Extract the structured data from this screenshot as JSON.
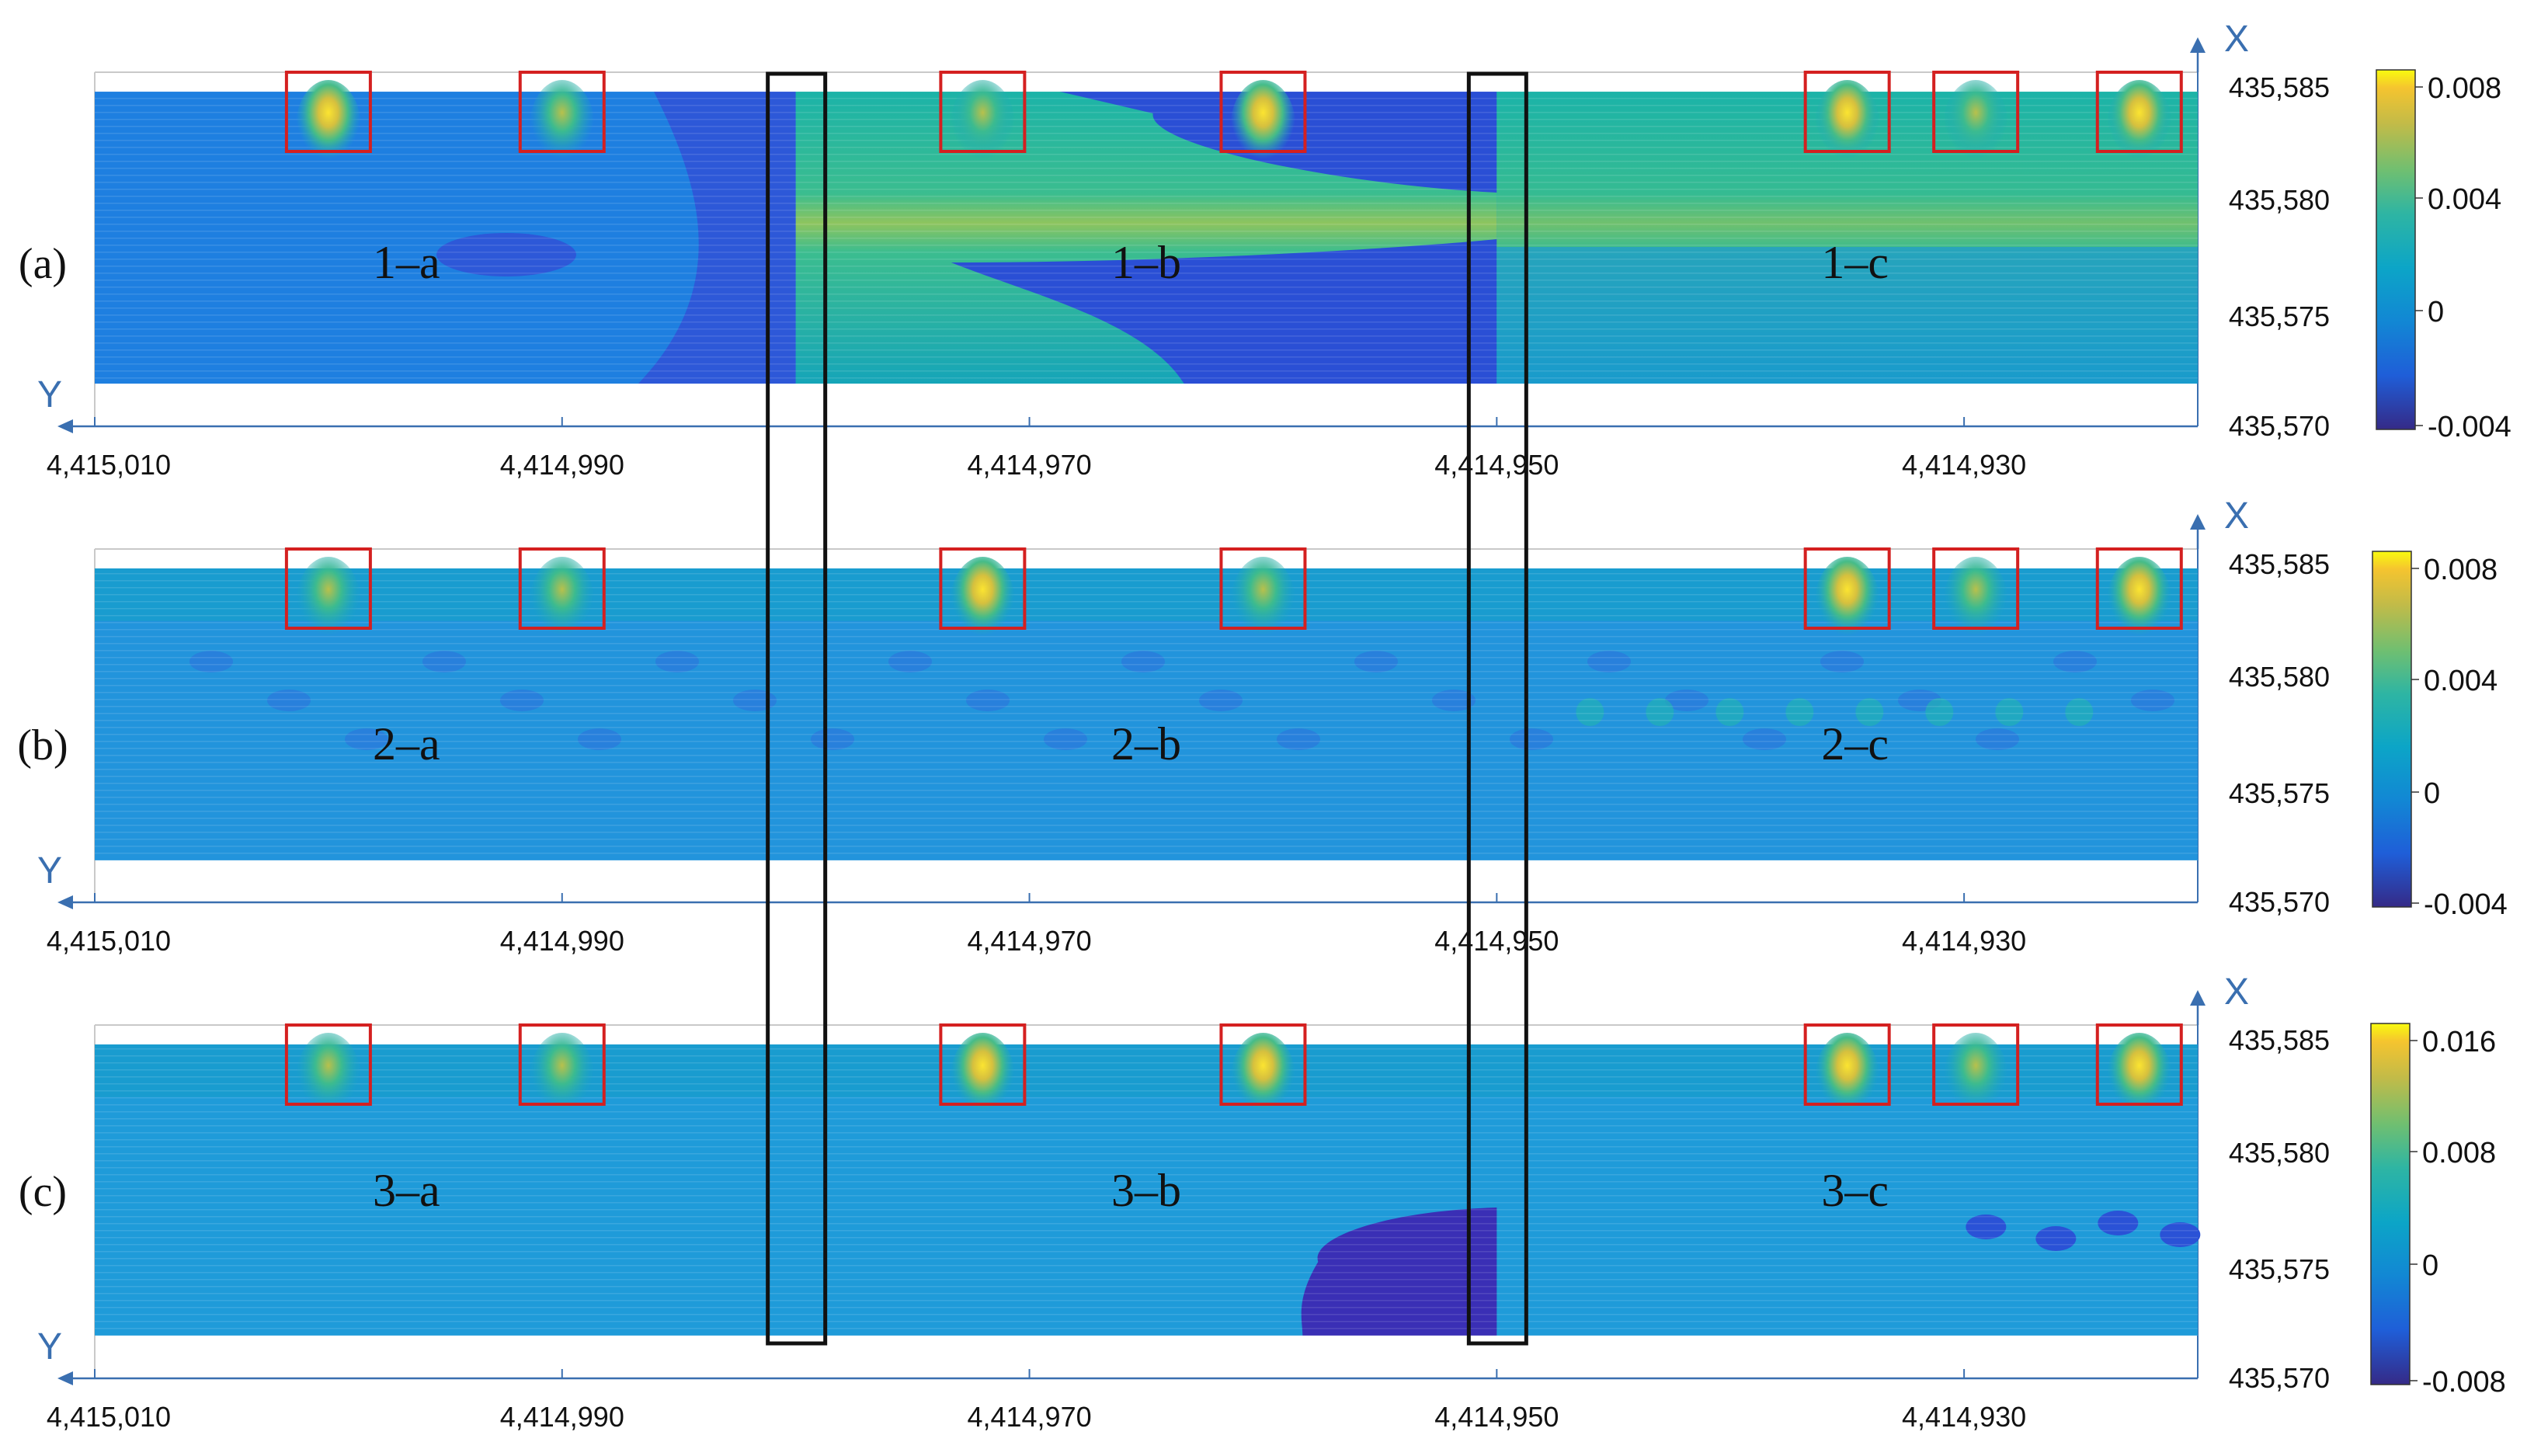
{
  "chart_data": {
    "type": "heatmap",
    "title": "",
    "panels": [
      {
        "label": "(a)",
        "regions": [
          "1–a",
          "1–b",
          "1–c"
        ],
        "colorbar": {
          "ticks": [
            "0.008",
            "0.004",
            "0",
            "-0.004"
          ],
          "min": -0.004,
          "max": 0.009
        }
      },
      {
        "label": "(b)",
        "regions": [
          "2–a",
          "2–b",
          "2–c"
        ],
        "colorbar": {
          "ticks": [
            "0.008",
            "0.004",
            "0",
            "-0.004"
          ],
          "min": -0.004,
          "max": 0.0105
        }
      },
      {
        "label": "(c)",
        "regions": [
          "3–a",
          "3–b",
          "3–c"
        ],
        "colorbar": {
          "ticks": [
            "0.016",
            "0.008",
            "0",
            "-0.008"
          ],
          "min": -0.012,
          "max": 0.018
        }
      }
    ],
    "x_axis": {
      "name": "Y",
      "ticks": [
        "4,415,010",
        "4,414,990",
        "4,414,970",
        "4,414,950",
        "4,414,930"
      ],
      "tick_values": [
        4415010,
        4414990,
        4414970,
        4414950,
        4414930
      ],
      "range": [
        4415010,
        4414920
      ]
    },
    "y_axis": {
      "name": "X",
      "ticks": [
        "435,585",
        "435,580",
        "435,575",
        "435,570"
      ],
      "tick_values": [
        435585,
        435580,
        435575,
        435570
      ],
      "range": [
        435570,
        435586
      ]
    },
    "highlight_boxes_x": [
      4415000,
      4414990,
      4414972,
      4414960,
      4414935,
      4414929.5,
      4414922.5
    ],
    "separator_boxes_x": [
      4414980,
      4414950
    ],
    "grid": false,
    "colormap": "parula"
  }
}
